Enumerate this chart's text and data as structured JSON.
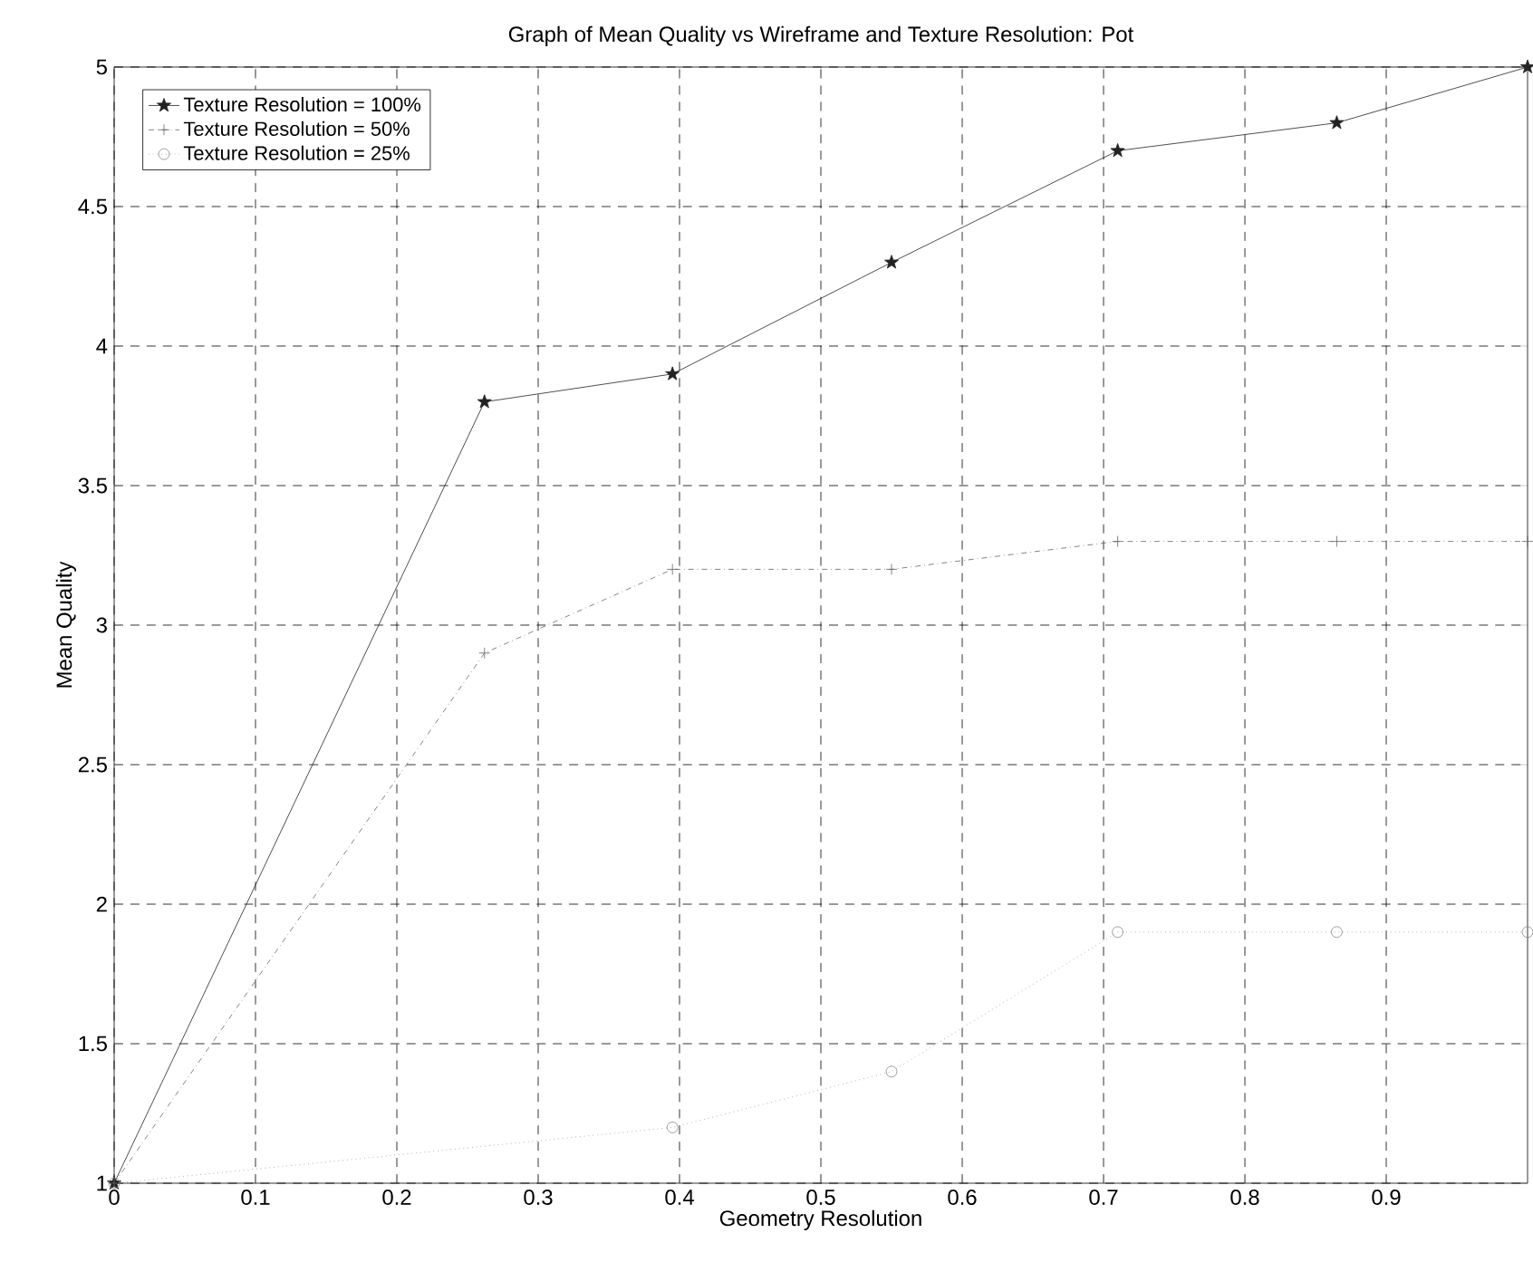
{
  "chart_data": {
    "type": "line",
    "title": "Graph of Mean Quality vs Wireframe and Texture Resolution: Pot",
    "xlabel": "Geometry Resolution",
    "ylabel": "Mean Quality",
    "x": [
      0,
      0.262,
      0.395,
      0.55,
      0.71,
      0.865,
      1.0
    ],
    "series": [
      {
        "name": "Texture Resolution = 100%",
        "color": "#222222",
        "marker": "star",
        "line_style": "solid",
        "values": [
          1,
          3.8,
          3.9,
          4.3,
          4.7,
          4.8,
          5
        ]
      },
      {
        "name": "Texture Resolution = 50%",
        "color": "#666666",
        "marker": "cross",
        "line_style": "dashdot",
        "values": [
          1,
          2.9,
          3.2,
          3.2,
          3.3,
          3.3,
          3.3
        ]
      },
      {
        "name": "Texture Resolution = 25%",
        "color": "#888888",
        "marker": "circle",
        "line_style": "dotted",
        "x": [
          0,
          0.395,
          0.55,
          0.71,
          0.865,
          1.0
        ],
        "values": [
          1,
          1.2,
          1.4,
          1.9,
          1.9,
          1.9
        ]
      }
    ],
    "xlim": [
      0,
      1
    ],
    "ylim": [
      1,
      5
    ],
    "xticks": [
      0,
      0.1,
      0.2,
      0.3,
      0.4,
      0.5,
      0.6,
      0.7,
      0.8,
      0.9
    ],
    "yticks": [
      1,
      1.5,
      2,
      2.5,
      3,
      3.5,
      4,
      4.5,
      5
    ],
    "grid": true,
    "legend": "top left"
  }
}
